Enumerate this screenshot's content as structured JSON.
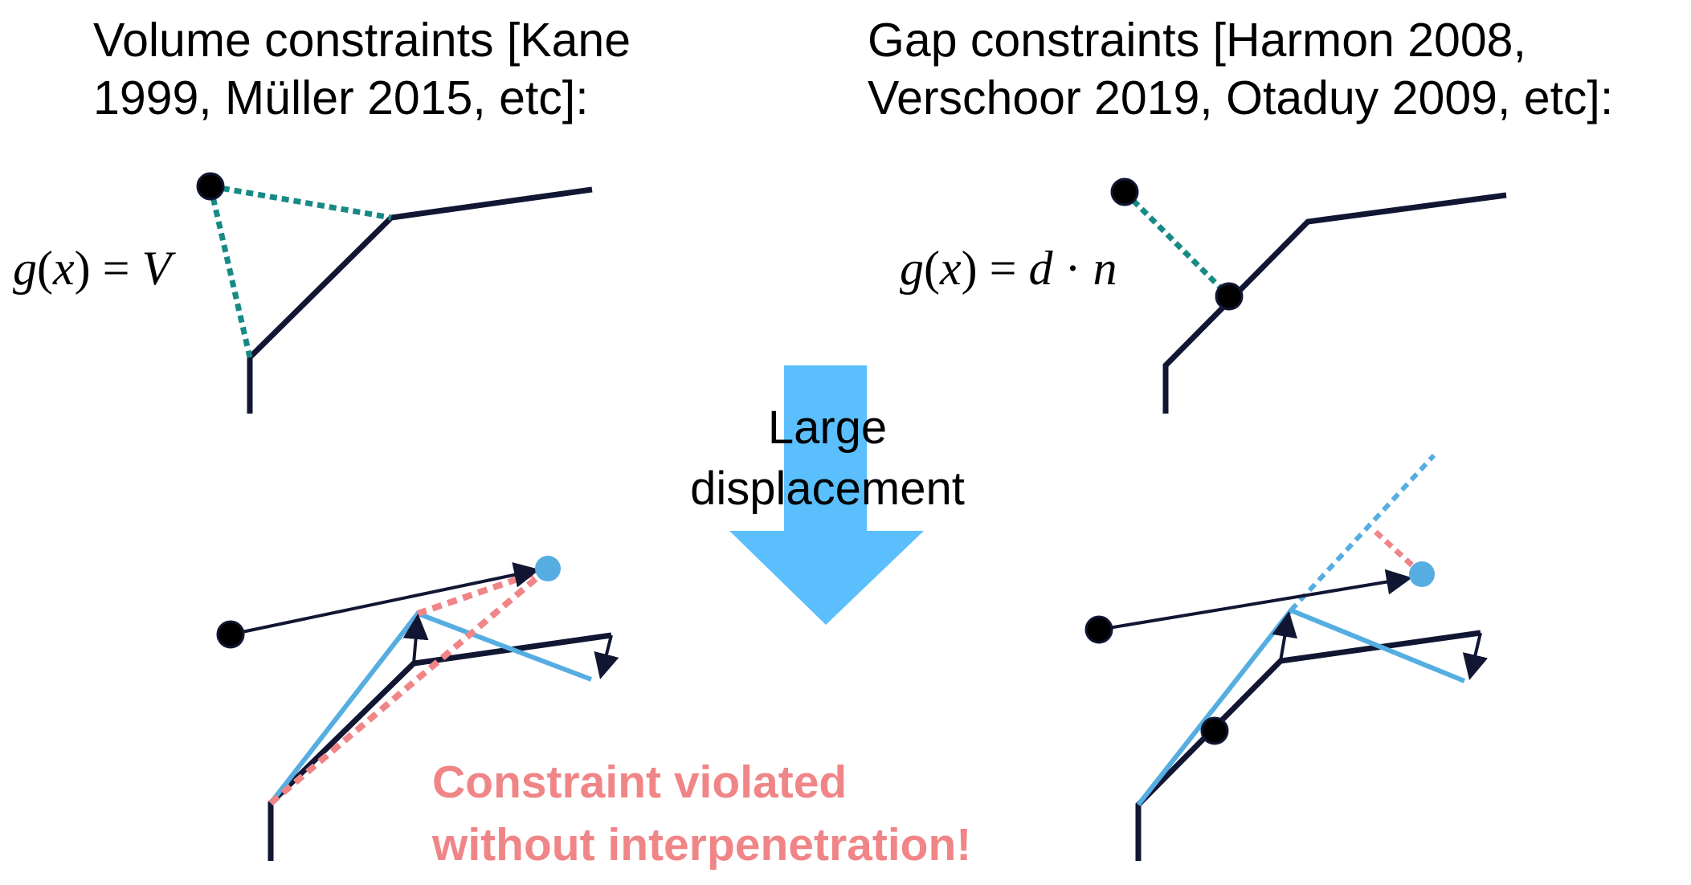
{
  "headings": {
    "left": {
      "line1": "Volume constraints [Kane",
      "line2": "1999, Müller 2015, etc]:"
    },
    "right": {
      "line1": "Gap constraints [Harmon 2008,",
      "line2": "Verschoor 2019, Otaduy 2009, etc]:"
    }
  },
  "equations": {
    "volume": {
      "func": "g",
      "arg": "x",
      "rhs": "V"
    },
    "gap": {
      "func": "g",
      "arg": "x",
      "rhs_d": "d",
      "dot": "·",
      "rhs_n": "n"
    }
  },
  "transition": {
    "line1": "Large",
    "line2": "displacement"
  },
  "warning": {
    "line1": "Constraint violated",
    "line2": "without interpenetration!"
  },
  "colors": {
    "text": "#000000",
    "surface": "#111633",
    "constraint": "#178a85",
    "displaced": "#55ade2",
    "violation": "#f08587",
    "transition_arrow": "#5abffc",
    "warning_text": "#f08587"
  }
}
